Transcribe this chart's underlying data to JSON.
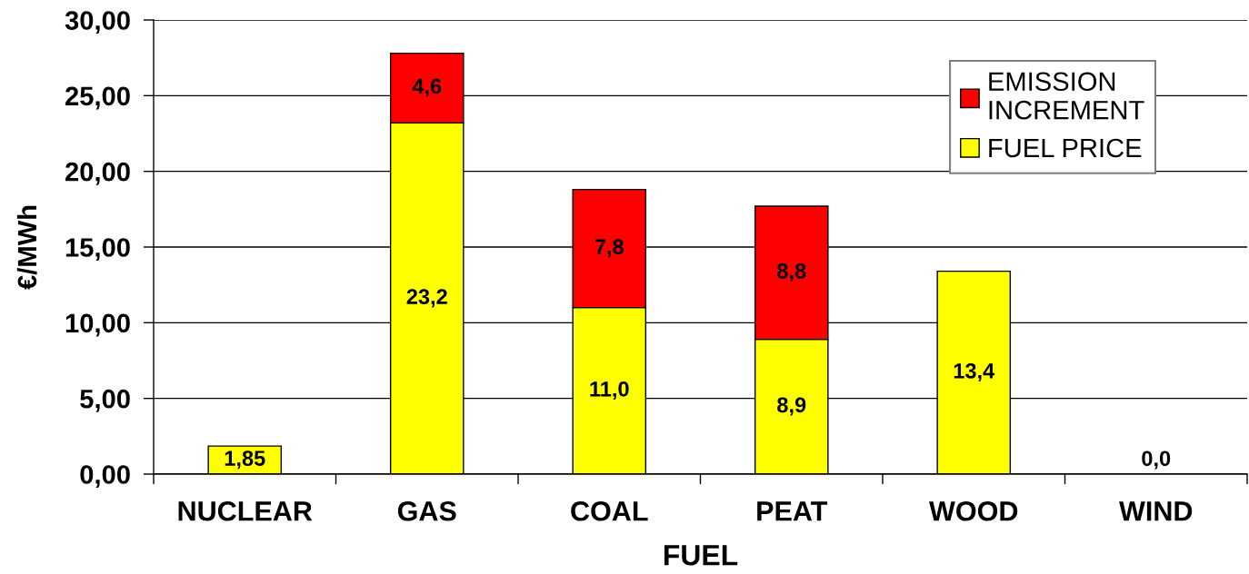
{
  "chart_data": {
    "type": "bar",
    "stacked": true,
    "xlabel": "FUEL",
    "ylabel": "€/MWh",
    "categories": [
      "NUCLEAR",
      "GAS",
      "COAL",
      "PEAT",
      "WOOD",
      "WIND"
    ],
    "series": [
      {
        "name": "FUEL PRICE",
        "color": "#ffff00",
        "values": [
          1.85,
          23.2,
          11.0,
          8.9,
          13.4,
          0.0
        ],
        "value_labels": [
          "1,85",
          "23,2",
          "11,0",
          "8,9",
          "13,4",
          "0,0"
        ]
      },
      {
        "name": "EMISSION\nINCREMENT",
        "color": "#ff0000",
        "values": [
          null,
          4.6,
          7.8,
          8.8,
          null,
          null
        ],
        "value_labels": [
          null,
          "4,6",
          "7,8",
          "8,8",
          null,
          null
        ]
      }
    ],
    "ylim": [
      0,
      30
    ],
    "yticks": [
      {
        "value": 0,
        "label": "0,00"
      },
      {
        "value": 5,
        "label": "5,00"
      },
      {
        "value": 10,
        "label": "10,00"
      },
      {
        "value": 15,
        "label": "15,00"
      },
      {
        "value": 20,
        "label": "20,00"
      },
      {
        "value": 25,
        "label": "25,00"
      },
      {
        "value": 30,
        "label": "30,00"
      }
    ],
    "grid": "y",
    "legend": "top right"
  }
}
